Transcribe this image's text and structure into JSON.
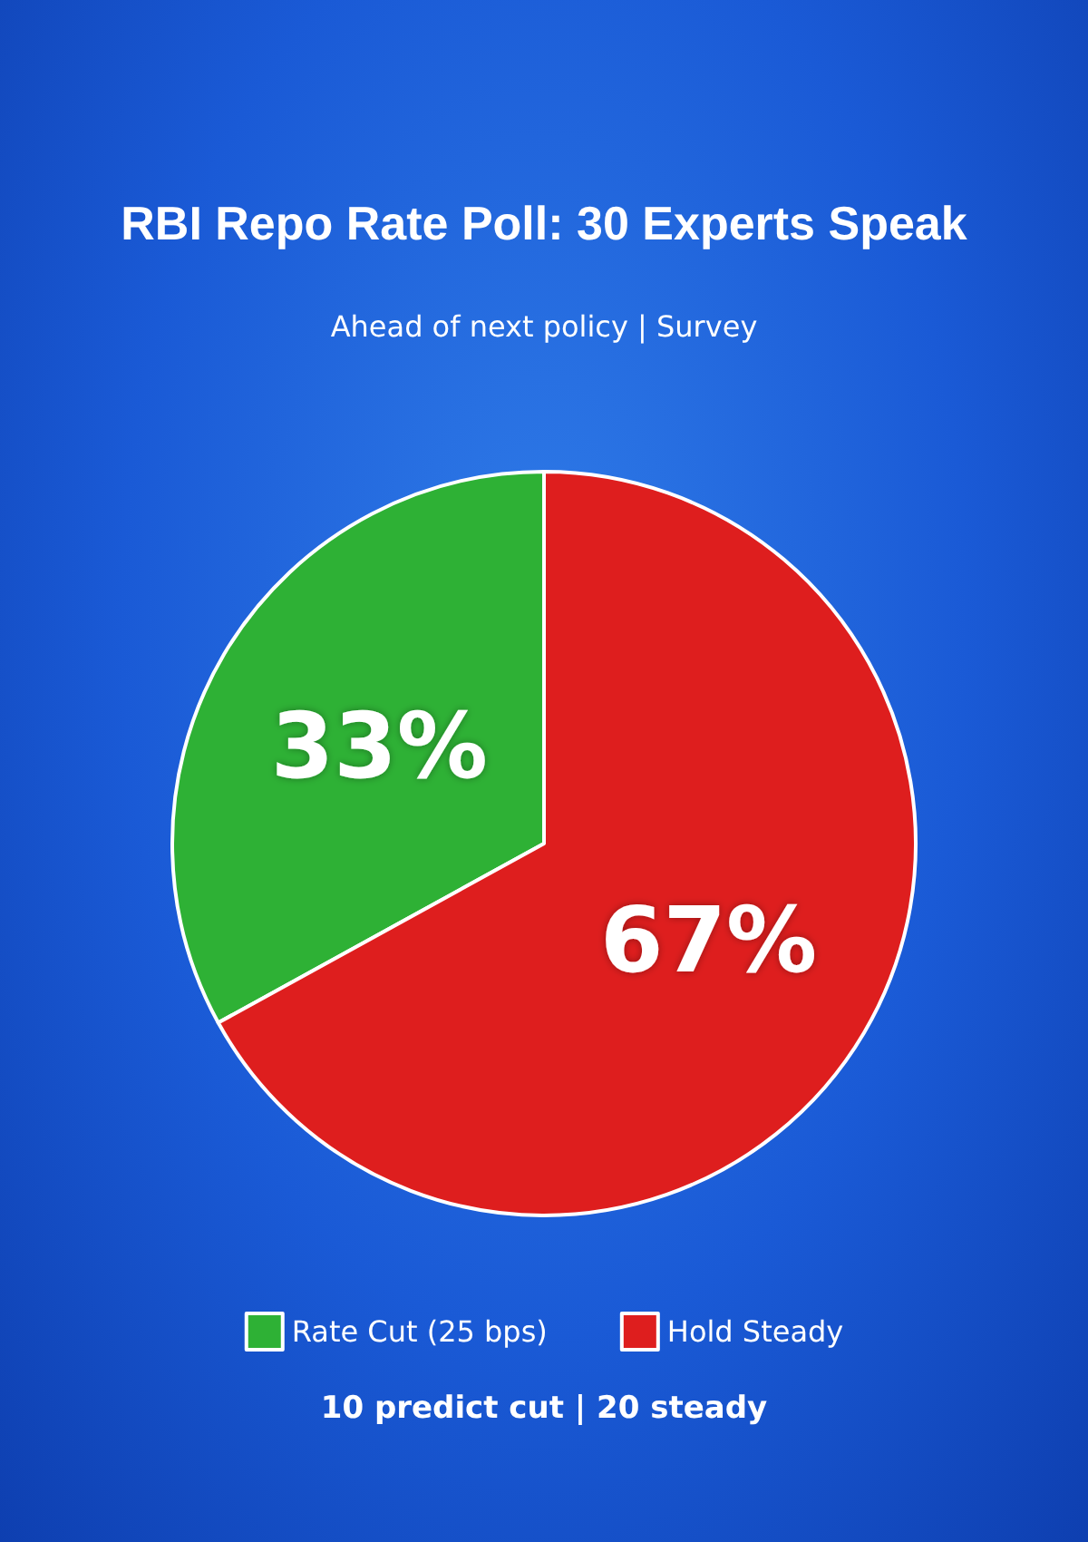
{
  "chart_data": {
    "type": "pie",
    "title": "RBI Repo Rate Poll: 30 Experts Speak",
    "subtitle": "Ahead of next policy | Survey",
    "categories": [
      "Rate Cut (25 bps)",
      "Hold Steady"
    ],
    "values": [
      33,
      67
    ],
    "colors": [
      "#2eb135",
      "#de1e1e"
    ],
    "value_labels": [
      "33%",
      "67%"
    ],
    "legend": "bottom",
    "annotations": [
      "10 predict cut | 20 steady"
    ]
  }
}
